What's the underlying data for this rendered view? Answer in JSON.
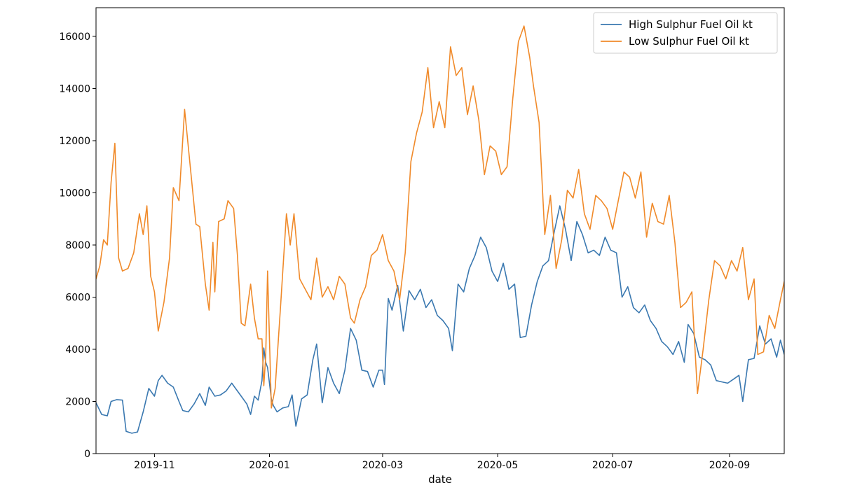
{
  "chart_data": {
    "type": "line",
    "xlabel": "date",
    "ylabel": "",
    "x_range": [
      "2019-10-01",
      "2020-09-30"
    ],
    "ylim": [
      0,
      17100
    ],
    "legend_position": "upper-right",
    "grid": false,
    "x_ticks": [
      {
        "date": "2019-11-01",
        "label": "2019-11"
      },
      {
        "date": "2020-01-01",
        "label": "2020-01"
      },
      {
        "date": "2020-03-01",
        "label": "2020-03"
      },
      {
        "date": "2020-05-01",
        "label": "2020-05"
      },
      {
        "date": "2020-07-01",
        "label": "2020-07"
      },
      {
        "date": "2020-09-01",
        "label": "2020-09"
      }
    ],
    "y_ticks": [
      {
        "value": 0,
        "label": "0"
      },
      {
        "value": 2000,
        "label": "2000"
      },
      {
        "value": 4000,
        "label": "4000"
      },
      {
        "value": 6000,
        "label": "6000"
      },
      {
        "value": 8000,
        "label": "8000"
      },
      {
        "value": 10000,
        "label": "10000"
      },
      {
        "value": 12000,
        "label": "12000"
      },
      {
        "value": 14000,
        "label": "14000"
      },
      {
        "value": 16000,
        "label": "16000"
      }
    ],
    "series": [
      {
        "name": "High Sulphur Fuel Oil kt",
        "color": "#3a78b0",
        "points": [
          [
            "2019-10-01",
            1950
          ],
          [
            "2019-10-04",
            1500
          ],
          [
            "2019-10-07",
            1450
          ],
          [
            "2019-10-09",
            2000
          ],
          [
            "2019-10-12",
            2070
          ],
          [
            "2019-10-15",
            2050
          ],
          [
            "2019-10-17",
            850
          ],
          [
            "2019-10-20",
            780
          ],
          [
            "2019-10-23",
            830
          ],
          [
            "2019-10-26",
            1600
          ],
          [
            "2019-10-29",
            2500
          ],
          [
            "2019-11-01",
            2200
          ],
          [
            "2019-11-03",
            2800
          ],
          [
            "2019-11-05",
            3000
          ],
          [
            "2019-11-08",
            2700
          ],
          [
            "2019-11-11",
            2550
          ],
          [
            "2019-11-14",
            2000
          ],
          [
            "2019-11-16",
            1650
          ],
          [
            "2019-11-19",
            1600
          ],
          [
            "2019-11-22",
            1900
          ],
          [
            "2019-11-25",
            2300
          ],
          [
            "2019-11-28",
            1850
          ],
          [
            "2019-11-30",
            2550
          ],
          [
            "2019-12-03",
            2200
          ],
          [
            "2019-12-06",
            2250
          ],
          [
            "2019-12-09",
            2400
          ],
          [
            "2019-12-12",
            2700
          ],
          [
            "2019-12-14",
            2500
          ],
          [
            "2019-12-17",
            2200
          ],
          [
            "2019-12-20",
            1900
          ],
          [
            "2019-12-22",
            1500
          ],
          [
            "2019-12-24",
            2200
          ],
          [
            "2019-12-26",
            2050
          ],
          [
            "2019-12-28",
            2800
          ],
          [
            "2019-12-29",
            4050
          ],
          [
            "2019-12-30",
            3500
          ],
          [
            "2019-12-31",
            3300
          ],
          [
            "2020-01-02",
            2100
          ],
          [
            "2020-01-03",
            1850
          ],
          [
            "2020-01-05",
            1600
          ],
          [
            "2020-01-08",
            1750
          ],
          [
            "2020-01-11",
            1800
          ],
          [
            "2020-01-13",
            2250
          ],
          [
            "2020-01-15",
            1050
          ],
          [
            "2020-01-18",
            2100
          ],
          [
            "2020-01-21",
            2250
          ],
          [
            "2020-01-24",
            3600
          ],
          [
            "2020-01-26",
            4200
          ],
          [
            "2020-01-29",
            1950
          ],
          [
            "2020-02-01",
            3300
          ],
          [
            "2020-02-04",
            2700
          ],
          [
            "2020-02-07",
            2300
          ],
          [
            "2020-02-10",
            3200
          ],
          [
            "2020-02-13",
            4800
          ],
          [
            "2020-02-16",
            4350
          ],
          [
            "2020-02-19",
            3200
          ],
          [
            "2020-02-22",
            3150
          ],
          [
            "2020-02-25",
            2550
          ],
          [
            "2020-02-28",
            3200
          ],
          [
            "2020-03-01",
            3200
          ],
          [
            "2020-03-02",
            2650
          ],
          [
            "2020-03-04",
            5950
          ],
          [
            "2020-03-06",
            5500
          ],
          [
            "2020-03-09",
            6450
          ],
          [
            "2020-03-12",
            4700
          ],
          [
            "2020-03-15",
            6250
          ],
          [
            "2020-03-18",
            5900
          ],
          [
            "2020-03-21",
            6300
          ],
          [
            "2020-03-24",
            5600
          ],
          [
            "2020-03-27",
            5900
          ],
          [
            "2020-03-30",
            5300
          ],
          [
            "2020-04-02",
            5100
          ],
          [
            "2020-04-05",
            4800
          ],
          [
            "2020-04-07",
            3950
          ],
          [
            "2020-04-10",
            6500
          ],
          [
            "2020-04-13",
            6200
          ],
          [
            "2020-04-16",
            7100
          ],
          [
            "2020-04-19",
            7600
          ],
          [
            "2020-04-22",
            8300
          ],
          [
            "2020-04-25",
            7900
          ],
          [
            "2020-04-28",
            7000
          ],
          [
            "2020-05-01",
            6600
          ],
          [
            "2020-05-04",
            7300
          ],
          [
            "2020-05-07",
            6300
          ],
          [
            "2020-05-10",
            6500
          ],
          [
            "2020-05-13",
            4450
          ],
          [
            "2020-05-16",
            4500
          ],
          [
            "2020-05-19",
            5700
          ],
          [
            "2020-05-22",
            6600
          ],
          [
            "2020-05-25",
            7200
          ],
          [
            "2020-05-28",
            7400
          ],
          [
            "2020-05-31",
            8500
          ],
          [
            "2020-06-03",
            9500
          ],
          [
            "2020-06-06",
            8600
          ],
          [
            "2020-06-09",
            7400
          ],
          [
            "2020-06-12",
            8900
          ],
          [
            "2020-06-15",
            8400
          ],
          [
            "2020-06-18",
            7700
          ],
          [
            "2020-06-21",
            7800
          ],
          [
            "2020-06-24",
            7600
          ],
          [
            "2020-06-27",
            8300
          ],
          [
            "2020-06-30",
            7800
          ],
          [
            "2020-07-03",
            7700
          ],
          [
            "2020-07-06",
            6000
          ],
          [
            "2020-07-09",
            6400
          ],
          [
            "2020-07-12",
            5600
          ],
          [
            "2020-07-15",
            5400
          ],
          [
            "2020-07-18",
            5700
          ],
          [
            "2020-07-21",
            5100
          ],
          [
            "2020-07-24",
            4800
          ],
          [
            "2020-07-27",
            4300
          ],
          [
            "2020-07-30",
            4100
          ],
          [
            "2020-08-02",
            3800
          ],
          [
            "2020-08-05",
            4300
          ],
          [
            "2020-08-08",
            3500
          ],
          [
            "2020-08-10",
            4950
          ],
          [
            "2020-08-13",
            4600
          ],
          [
            "2020-08-16",
            3700
          ],
          [
            "2020-08-19",
            3600
          ],
          [
            "2020-08-22",
            3400
          ],
          [
            "2020-08-25",
            2800
          ],
          [
            "2020-08-28",
            2750
          ],
          [
            "2020-08-31",
            2700
          ],
          [
            "2020-09-03",
            2850
          ],
          [
            "2020-09-06",
            3000
          ],
          [
            "2020-09-08",
            2000
          ],
          [
            "2020-09-11",
            3600
          ],
          [
            "2020-09-14",
            3650
          ],
          [
            "2020-09-17",
            4900
          ],
          [
            "2020-09-20",
            4200
          ],
          [
            "2020-09-23",
            4400
          ],
          [
            "2020-09-26",
            3700
          ],
          [
            "2020-09-28",
            4350
          ],
          [
            "2020-09-30",
            3800
          ]
        ]
      },
      {
        "name": "Low Sulphur Fuel Oil kt",
        "color": "#f08a2a",
        "points": [
          [
            "2019-10-01",
            6700
          ],
          [
            "2019-10-03",
            7200
          ],
          [
            "2019-10-05",
            8200
          ],
          [
            "2019-10-07",
            8000
          ],
          [
            "2019-10-09",
            10400
          ],
          [
            "2019-10-11",
            11900
          ],
          [
            "2019-10-13",
            7500
          ],
          [
            "2019-10-15",
            7000
          ],
          [
            "2019-10-18",
            7100
          ],
          [
            "2019-10-21",
            7700
          ],
          [
            "2019-10-24",
            9200
          ],
          [
            "2019-10-26",
            8400
          ],
          [
            "2019-10-28",
            9500
          ],
          [
            "2019-10-30",
            6800
          ],
          [
            "2019-11-01",
            6200
          ],
          [
            "2019-11-03",
            4700
          ],
          [
            "2019-11-06",
            5800
          ],
          [
            "2019-11-09",
            7500
          ],
          [
            "2019-11-11",
            10200
          ],
          [
            "2019-11-14",
            9700
          ],
          [
            "2019-11-17",
            13200
          ],
          [
            "2019-11-20",
            11000
          ],
          [
            "2019-11-23",
            8800
          ],
          [
            "2019-11-25",
            8700
          ],
          [
            "2019-11-28",
            6500
          ],
          [
            "2019-11-30",
            5500
          ],
          [
            "2019-12-02",
            8100
          ],
          [
            "2019-12-03",
            6200
          ],
          [
            "2019-12-05",
            8900
          ],
          [
            "2019-12-08",
            9000
          ],
          [
            "2019-12-10",
            9700
          ],
          [
            "2019-12-13",
            9400
          ],
          [
            "2019-12-15",
            7600
          ],
          [
            "2019-12-17",
            5000
          ],
          [
            "2019-12-19",
            4900
          ],
          [
            "2019-12-22",
            6500
          ],
          [
            "2019-12-24",
            5200
          ],
          [
            "2019-12-26",
            4400
          ],
          [
            "2019-12-28",
            4400
          ],
          [
            "2019-12-29",
            2600
          ],
          [
            "2019-12-30",
            3700
          ],
          [
            "2019-12-31",
            7000
          ],
          [
            "2020-01-02",
            1750
          ],
          [
            "2020-01-04",
            2500
          ],
          [
            "2020-01-07",
            5800
          ],
          [
            "2020-01-10",
            9200
          ],
          [
            "2020-01-12",
            8000
          ],
          [
            "2020-01-14",
            9200
          ],
          [
            "2020-01-17",
            6700
          ],
          [
            "2020-01-20",
            6300
          ],
          [
            "2020-01-23",
            5900
          ],
          [
            "2020-01-26",
            7500
          ],
          [
            "2020-01-29",
            6000
          ],
          [
            "2020-02-01",
            6400
          ],
          [
            "2020-02-04",
            5900
          ],
          [
            "2020-02-07",
            6800
          ],
          [
            "2020-02-10",
            6500
          ],
          [
            "2020-02-13",
            5200
          ],
          [
            "2020-02-15",
            5000
          ],
          [
            "2020-02-18",
            5900
          ],
          [
            "2020-02-21",
            6400
          ],
          [
            "2020-02-24",
            7600
          ],
          [
            "2020-02-27",
            7800
          ],
          [
            "2020-03-01",
            8400
          ],
          [
            "2020-03-04",
            7400
          ],
          [
            "2020-03-07",
            7000
          ],
          [
            "2020-03-10",
            5900
          ],
          [
            "2020-03-13",
            7700
          ],
          [
            "2020-03-16",
            11200
          ],
          [
            "2020-03-19",
            12300
          ],
          [
            "2020-03-22",
            13100
          ],
          [
            "2020-03-25",
            14800
          ],
          [
            "2020-03-28",
            12500
          ],
          [
            "2020-03-31",
            13500
          ],
          [
            "2020-04-03",
            12500
          ],
          [
            "2020-04-06",
            15600
          ],
          [
            "2020-04-09",
            14500
          ],
          [
            "2020-04-12",
            14800
          ],
          [
            "2020-04-15",
            13000
          ],
          [
            "2020-04-18",
            14100
          ],
          [
            "2020-04-21",
            12800
          ],
          [
            "2020-04-24",
            10700
          ],
          [
            "2020-04-27",
            11800
          ],
          [
            "2020-04-30",
            11600
          ],
          [
            "2020-05-03",
            10700
          ],
          [
            "2020-05-06",
            11000
          ],
          [
            "2020-05-09",
            13600
          ],
          [
            "2020-05-12",
            15800
          ],
          [
            "2020-05-15",
            16400
          ],
          [
            "2020-05-18",
            15200
          ],
          [
            "2020-05-20",
            14100
          ],
          [
            "2020-05-23",
            12700
          ],
          [
            "2020-05-26",
            8400
          ],
          [
            "2020-05-29",
            9900
          ],
          [
            "2020-06-01",
            7100
          ],
          [
            "2020-06-04",
            8200
          ],
          [
            "2020-06-07",
            10100
          ],
          [
            "2020-06-10",
            9800
          ],
          [
            "2020-06-13",
            10900
          ],
          [
            "2020-06-16",
            9200
          ],
          [
            "2020-06-19",
            8600
          ],
          [
            "2020-06-22",
            9900
          ],
          [
            "2020-06-25",
            9700
          ],
          [
            "2020-06-28",
            9400
          ],
          [
            "2020-07-01",
            8600
          ],
          [
            "2020-07-04",
            9700
          ],
          [
            "2020-07-07",
            10800
          ],
          [
            "2020-07-10",
            10600
          ],
          [
            "2020-07-13",
            9800
          ],
          [
            "2020-07-16",
            10800
          ],
          [
            "2020-07-19",
            8300
          ],
          [
            "2020-07-22",
            9600
          ],
          [
            "2020-07-25",
            8900
          ],
          [
            "2020-07-28",
            8800
          ],
          [
            "2020-07-31",
            9900
          ],
          [
            "2020-08-03",
            8100
          ],
          [
            "2020-08-06",
            5600
          ],
          [
            "2020-08-09",
            5800
          ],
          [
            "2020-08-12",
            6200
          ],
          [
            "2020-08-15",
            2300
          ],
          [
            "2020-08-18",
            4000
          ],
          [
            "2020-08-21",
            5900
          ],
          [
            "2020-08-24",
            7400
          ],
          [
            "2020-08-27",
            7200
          ],
          [
            "2020-08-30",
            6700
          ],
          [
            "2020-09-02",
            7400
          ],
          [
            "2020-09-05",
            7000
          ],
          [
            "2020-09-08",
            7900
          ],
          [
            "2020-09-11",
            5900
          ],
          [
            "2020-09-14",
            6700
          ],
          [
            "2020-09-16",
            3800
          ],
          [
            "2020-09-19",
            3900
          ],
          [
            "2020-09-22",
            5300
          ],
          [
            "2020-09-25",
            4800
          ],
          [
            "2020-09-28",
            5900
          ],
          [
            "2020-09-30",
            6600
          ]
        ]
      }
    ]
  }
}
